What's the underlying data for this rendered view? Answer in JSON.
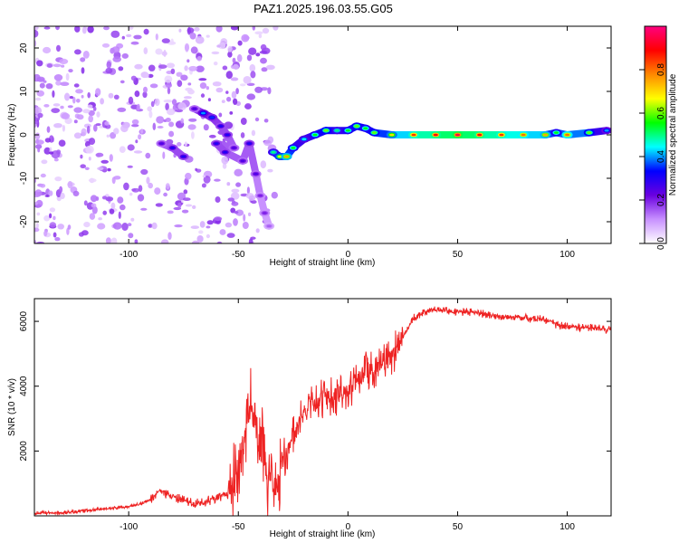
{
  "title": "PAZ1.2025.196.03.55.G05",
  "chart_data": [
    {
      "type": "heatmap",
      "xlabel": "Height of straight line (km)",
      "ylabel": "Frequency (Hz)",
      "xlim": [
        -143,
        120
      ],
      "ylim": [
        -25,
        25
      ],
      "xticks": [
        -100,
        -50,
        0,
        50,
        100
      ],
      "yticks": [
        -20,
        -10,
        0,
        10,
        20
      ],
      "colorbar": {
        "label": "Normalized spectral amplitude",
        "range": [
          0,
          1
        ],
        "ticks": [
          0.0,
          0.2,
          0.4,
          0.6,
          0.8
        ],
        "tick_labels": [
          "0.0",
          "0.2",
          "0.4",
          "0.6",
          "0.8"
        ],
        "colormap": [
          "#ffffff",
          "#c890ff",
          "#6a00e0",
          "#0000ff",
          "#00ffff",
          "#00ff00",
          "#ffff00",
          "#ff8800",
          "#ff0000",
          "#ff0080"
        ]
      },
      "ridge": [
        {
          "x": -85,
          "y": -2,
          "a": 0.25
        },
        {
          "x": -80,
          "y": -3,
          "a": 0.3
        },
        {
          "x": -75,
          "y": -5,
          "a": 0.3
        },
        {
          "x": -70,
          "y": 6,
          "a": 0.25
        },
        {
          "x": -66,
          "y": 5,
          "a": 0.4
        },
        {
          "x": -62,
          "y": 4,
          "a": 0.35
        },
        {
          "x": -58,
          "y": 2,
          "a": 0.3
        },
        {
          "x": -55,
          "y": 0,
          "a": 0.3
        },
        {
          "x": -52,
          "y": -3,
          "a": 0.25
        },
        {
          "x": -60,
          "y": -2,
          "a": 0.3
        },
        {
          "x": -56,
          "y": -4,
          "a": 0.3
        },
        {
          "x": -48,
          "y": -6,
          "a": 0.25
        },
        {
          "x": -45,
          "y": -2,
          "a": 0.3
        },
        {
          "x": -42,
          "y": -9,
          "a": 0.25
        },
        {
          "x": -40,
          "y": -14,
          "a": 0.2
        },
        {
          "x": -38,
          "y": -18,
          "a": 0.2
        },
        {
          "x": -36,
          "y": -21,
          "a": 0.15
        },
        {
          "x": -34,
          "y": -4,
          "a": 0.5
        },
        {
          "x": -31,
          "y": -5,
          "a": 0.65
        },
        {
          "x": -28,
          "y": -5,
          "a": 0.75
        },
        {
          "x": -25,
          "y": -3,
          "a": 0.55
        },
        {
          "x": -20,
          "y": -1,
          "a": 0.45
        },
        {
          "x": -15,
          "y": 0,
          "a": 0.55
        },
        {
          "x": -10,
          "y": 1,
          "a": 0.6
        },
        {
          "x": -5,
          "y": 1,
          "a": 0.5
        },
        {
          "x": 0,
          "y": 1,
          "a": 0.55
        },
        {
          "x": 4,
          "y": 2,
          "a": 0.6
        },
        {
          "x": 8,
          "y": 1.5,
          "a": 0.55
        },
        {
          "x": 12,
          "y": 0.5,
          "a": 0.6
        },
        {
          "x": 20,
          "y": 0,
          "a": 0.7
        },
        {
          "x": 30,
          "y": 0,
          "a": 0.85
        },
        {
          "x": 40,
          "y": 0,
          "a": 0.9
        },
        {
          "x": 50,
          "y": 0,
          "a": 0.95
        },
        {
          "x": 60,
          "y": 0,
          "a": 0.9
        },
        {
          "x": 70,
          "y": 0,
          "a": 0.85
        },
        {
          "x": 80,
          "y": 0,
          "a": 0.8
        },
        {
          "x": 90,
          "y": 0,
          "a": 0.75
        },
        {
          "x": 95,
          "y": 0.5,
          "a": 0.55
        },
        {
          "x": 100,
          "y": 0,
          "a": 0.8
        },
        {
          "x": 110,
          "y": 0.5,
          "a": 0.6
        },
        {
          "x": 118,
          "y": 1,
          "a": 0.4
        }
      ]
    },
    {
      "type": "line",
      "xlabel": "Height of straight line (km)",
      "ylabel": "SNR (10 * v/v)",
      "xlim": [
        -143,
        120
      ],
      "ylim": [
        0,
        6700
      ],
      "xticks": [
        -100,
        -50,
        0,
        50,
        100
      ],
      "yticks": [
        2000,
        4000,
        6000
      ],
      "color": "#ee2222",
      "x": [
        -143,
        -130,
        -120,
        -110,
        -100,
        -95,
        -90,
        -86,
        -80,
        -70,
        -62,
        -55,
        -50,
        -47,
        -45,
        -43,
        -41,
        -39,
        -37,
        -35,
        -33,
        -30,
        -25,
        -20,
        -15,
        -10,
        -5,
        0,
        5,
        10,
        15,
        20,
        25,
        30,
        35,
        40,
        50,
        60,
        70,
        80,
        90,
        95,
        100,
        110,
        120
      ],
      "y": [
        80,
        100,
        160,
        220,
        280,
        350,
        500,
        800,
        600,
        350,
        500,
        700,
        1300,
        2500,
        3600,
        2800,
        1800,
        2600,
        900,
        1500,
        400,
        1700,
        2400,
        3200,
        3500,
        3600,
        3700,
        3900,
        4300,
        4500,
        4600,
        4900,
        5500,
        6100,
        6300,
        6350,
        6300,
        6250,
        6150,
        6100,
        6050,
        5900,
        5850,
        5800,
        5750
      ]
    }
  ]
}
